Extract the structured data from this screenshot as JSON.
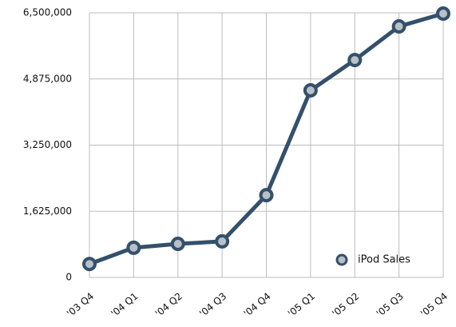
{
  "chart_data": {
    "type": "line",
    "categories": [
      "'03 Q4",
      "'04 Q1",
      "'04 Q2",
      "'04 Q3",
      "'04 Q4",
      "'05 Q1",
      "'05 Q2",
      "'05 Q3",
      "'05 Q4"
    ],
    "series": [
      {
        "name": "iPod Sales",
        "color": "#34506b",
        "values": [
          330000,
          730000,
          825000,
          885000,
          2020000,
          4595000,
          5340000,
          6165000,
          6480000
        ]
      }
    ],
    "ylim": [
      0,
      6500000
    ],
    "yticks": [
      0,
      {
        "value": 1625000,
        "label": "1,625,000"
      },
      {
        "value": 3250000,
        "label": "3,250,000"
      },
      {
        "value": 4875000,
        "label": "4,875,000"
      },
      {
        "value": 6500000,
        "label": "6,500,000"
      }
    ],
    "grid": true,
    "legend": "lower right"
  }
}
